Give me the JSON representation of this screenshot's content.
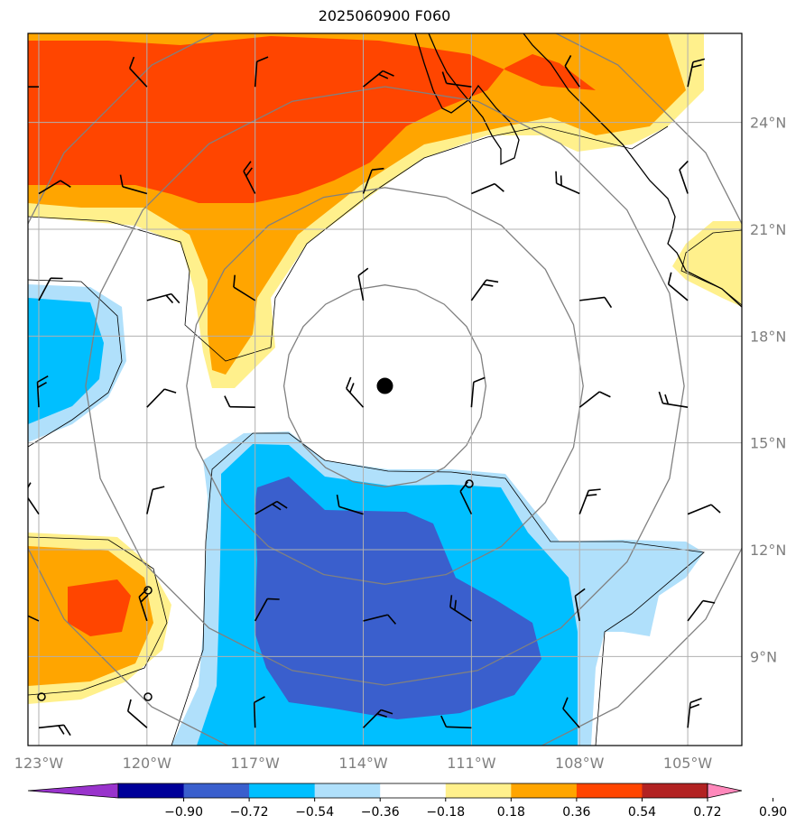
{
  "title": "2025060900 F060",
  "map": {
    "lon_range": [
      -123.3,
      -103.5
    ],
    "lat_range": [
      6.5,
      26.5
    ],
    "projection": "PlateCarree",
    "center_marker": {
      "lon": -113.4,
      "lat": 16.6
    },
    "lon_ticks": [
      {
        "value": -123,
        "label": "123°W"
      },
      {
        "value": -120,
        "label": "120°W"
      },
      {
        "value": -117,
        "label": "117°W"
      },
      {
        "value": -114,
        "label": "114°W"
      },
      {
        "value": -111,
        "label": "111°W"
      },
      {
        "value": -108,
        "label": "108°W"
      },
      {
        "value": -105,
        "label": "105°W"
      }
    ],
    "lat_ticks": [
      {
        "value": 24,
        "label": "24°N"
      },
      {
        "value": 21,
        "label": "21°N"
      },
      {
        "value": 18,
        "label": "18°N"
      },
      {
        "value": 15,
        "label": "15°N"
      },
      {
        "value": 12,
        "label": "12°N"
      },
      {
        "value": 9,
        "label": "9°N"
      }
    ],
    "range_rings_deg": [
      2.8,
      5.5,
      8.3,
      11.0
    ],
    "grid": true
  },
  "colorbar": {
    "levels": [
      "−0.90",
      "−0.72",
      "−0.54",
      "−0.36",
      "−0.18",
      "0.18",
      "0.36",
      "0.54",
      "0.72",
      "0.90"
    ],
    "colors": [
      "#9933cc",
      "#000099",
      "#3a5fcd",
      "#00bfff",
      "#b0e0fb",
      "#ffffff",
      "#fff08c",
      "#ffa500",
      "#ff4500",
      "#b22222",
      "#ff88bb"
    ],
    "extend": "both"
  },
  "wind_barbs": [
    {
      "lon": -123,
      "lat": 25
    },
    {
      "lon": -120,
      "lat": 25
    },
    {
      "lon": -117,
      "lat": 25
    },
    {
      "lon": -114,
      "lat": 25
    },
    {
      "lon": -111,
      "lat": 25
    },
    {
      "lon": -108,
      "lat": 25
    },
    {
      "lon": -105,
      "lat": 25
    },
    {
      "lon": -123,
      "lat": 22
    },
    {
      "lon": -120,
      "lat": 22
    },
    {
      "lon": -117,
      "lat": 22
    },
    {
      "lon": -114,
      "lat": 22
    },
    {
      "lon": -111,
      "lat": 22
    },
    {
      "lon": -108,
      "lat": 22
    },
    {
      "lon": -105,
      "lat": 22
    },
    {
      "lon": -123,
      "lat": 19
    },
    {
      "lon": -120,
      "lat": 19
    },
    {
      "lon": -117,
      "lat": 19
    },
    {
      "lon": -114,
      "lat": 19
    },
    {
      "lon": -111,
      "lat": 19
    },
    {
      "lon": -108,
      "lat": 19
    },
    {
      "lon": -105,
      "lat": 19
    },
    {
      "lon": -123,
      "lat": 16
    },
    {
      "lon": -120,
      "lat": 16
    },
    {
      "lon": -117,
      "lat": 16
    },
    {
      "lon": -114,
      "lat": 16
    },
    {
      "lon": -111,
      "lat": 16
    },
    {
      "lon": -108,
      "lat": 16
    },
    {
      "lon": -105,
      "lat": 16
    },
    {
      "lon": -123,
      "lat": 13
    },
    {
      "lon": -120,
      "lat": 13
    },
    {
      "lon": -117,
      "lat": 13
    },
    {
      "lon": -114,
      "lat": 13
    },
    {
      "lon": -111,
      "lat": 13
    },
    {
      "lon": -108,
      "lat": 13
    },
    {
      "lon": -105,
      "lat": 13
    },
    {
      "lon": -123,
      "lat": 10
    },
    {
      "lon": -120,
      "lat": 10
    },
    {
      "lon": -117,
      "lat": 10
    },
    {
      "lon": -114,
      "lat": 10
    },
    {
      "lon": -111,
      "lat": 10
    },
    {
      "lon": -108,
      "lat": 10
    },
    {
      "lon": -105,
      "lat": 10
    },
    {
      "lon": -123,
      "lat": 7
    },
    {
      "lon": -120,
      "lat": 7
    },
    {
      "lon": -117,
      "lat": 7
    },
    {
      "lon": -114,
      "lat": 7
    },
    {
      "lon": -111,
      "lat": 7
    },
    {
      "lon": -108,
      "lat": 7
    },
    {
      "lon": -105,
      "lat": 7
    }
  ]
}
